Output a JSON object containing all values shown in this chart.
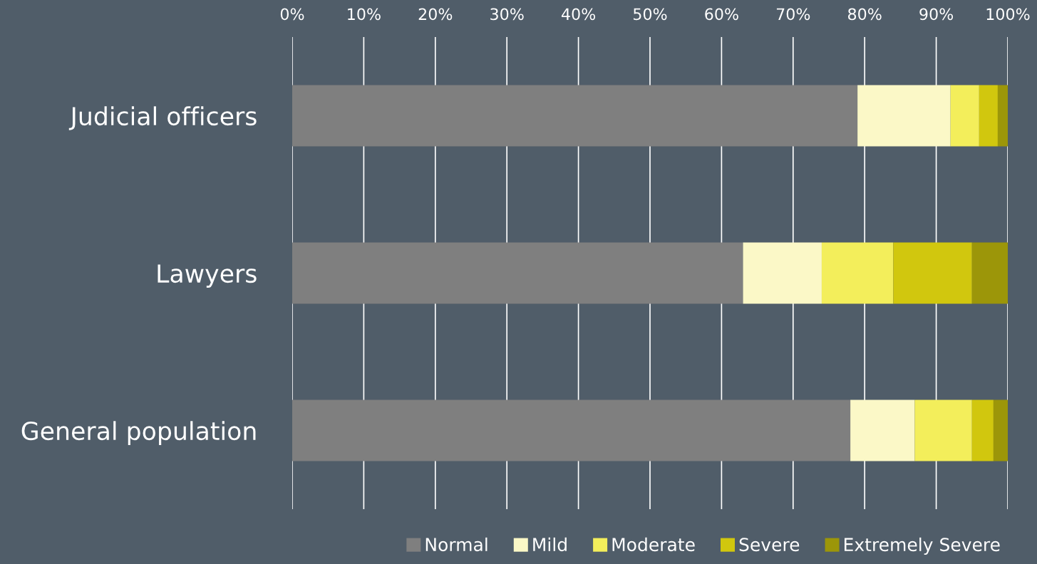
{
  "chart_data": {
    "type": "bar",
    "orientation": "horizontal",
    "stacked": true,
    "categories": [
      "Judicial officers",
      "Lawyers",
      "General population"
    ],
    "series": [
      {
        "name": "Normal",
        "color": "#7f7f7f",
        "values": [
          79,
          63,
          78
        ]
      },
      {
        "name": "Mild",
        "color": "#fbf8c7",
        "values": [
          13,
          11,
          9
        ]
      },
      {
        "name": "Moderate",
        "color": "#f3ee5b",
        "values": [
          4,
          10,
          8
        ]
      },
      {
        "name": "Severe",
        "color": "#d1c70e",
        "values": [
          2.6,
          11,
          3
        ]
      },
      {
        "name": "Extremely Severe",
        "color": "#9c9609",
        "values": [
          1.4,
          5,
          2
        ]
      }
    ],
    "xlim": [
      0,
      100
    ],
    "xticks": [
      {
        "value": 0,
        "label": "0%"
      },
      {
        "value": 10,
        "label": "10%"
      },
      {
        "value": 20,
        "label": "20%"
      },
      {
        "value": 30,
        "label": "30%"
      },
      {
        "value": 40,
        "label": "40%"
      },
      {
        "value": 50,
        "label": "50%"
      },
      {
        "value": 60,
        "label": "60%"
      },
      {
        "value": 70,
        "label": "70%"
      },
      {
        "value": 80,
        "label": "80%"
      },
      {
        "value": 90,
        "label": "90%"
      },
      {
        "value": 100,
        "label": "100%"
      }
    ],
    "grid": "x",
    "legend": "bottom"
  }
}
